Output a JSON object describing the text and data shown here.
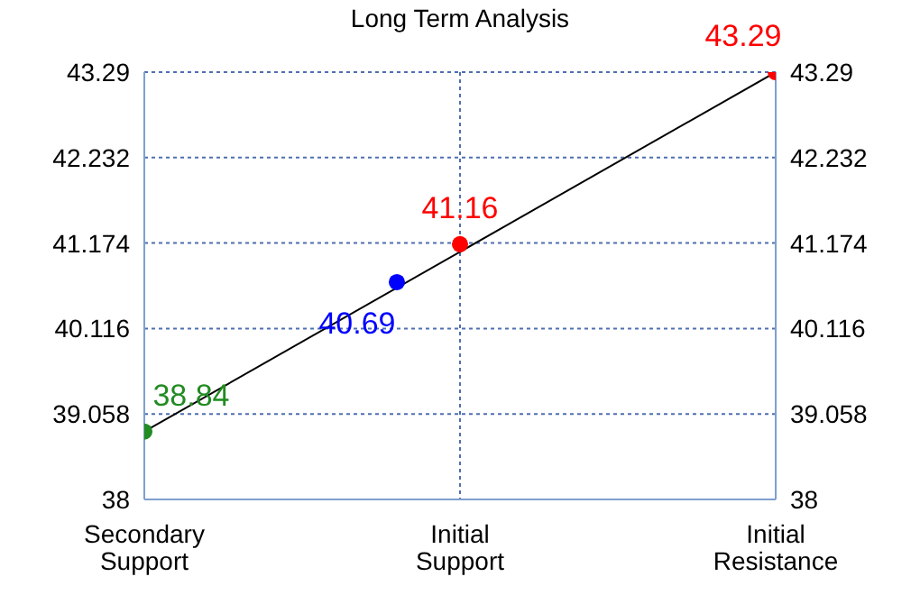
{
  "chart_data": {
    "type": "scatter",
    "title": "Long Term Analysis",
    "categories": [
      "Secondary Support",
      null,
      null,
      null,
      null,
      "Initial Support",
      null,
      null,
      null,
      null,
      "Initial Resistance"
    ],
    "ylim": [
      38,
      43.29
    ],
    "yticks": [
      38,
      39.058,
      40.116,
      41.174,
      42.232,
      43.29
    ],
    "y2lim": [
      38,
      43.29
    ],
    "y2ticks": [
      38,
      39.058,
      40.116,
      41.174,
      42.232,
      43.29
    ],
    "grid": true,
    "marker": "circle",
    "data_labels": true,
    "series": [
      {
        "type": "line",
        "color": "#000000",
        "values": [
          38.84,
          null,
          null,
          null,
          null,
          null,
          null,
          null,
          null,
          null,
          43.29
        ],
        "marker": "none",
        "value_labels": [
          null,
          null,
          null,
          null,
          null,
          null,
          null,
          null,
          null,
          null,
          null
        ]
      },
      {
        "color": "#228b22",
        "values": [
          38.84,
          null,
          null,
          null,
          null,
          null,
          null,
          null,
          null,
          null,
          null
        ]
      },
      {
        "color": "#0000ff",
        "values": [
          null,
          null,
          null,
          null,
          40.69,
          null,
          null,
          null,
          null,
          null,
          null
        ]
      },
      {
        "color": "#ff0000",
        "values": [
          null,
          null,
          null,
          null,
          null,
          41.16,
          null,
          null,
          null,
          null,
          null
        ]
      },
      {
        "color": "#ff0000",
        "values": [
          null,
          null,
          null,
          null,
          null,
          null,
          null,
          null,
          null,
          null,
          43.29
        ]
      }
    ]
  }
}
